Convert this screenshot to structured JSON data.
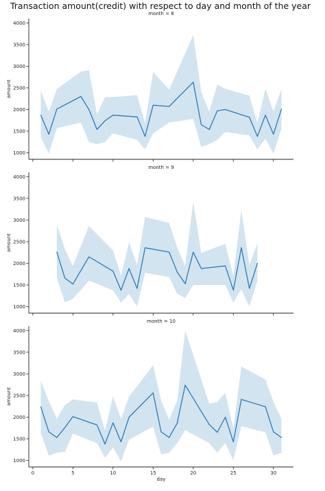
{
  "figure_title": "Transaction amount(credit) with respect to day and month of the year",
  "chart_data": [
    {
      "type": "line",
      "title": "month = 8",
      "xlabel": "",
      "ylabel": "amount",
      "xlim": [
        -0.5,
        32.5
      ],
      "ylim": [
        850,
        4100
      ],
      "xticks": [
        0,
        5,
        10,
        15,
        20,
        25,
        30
      ],
      "xtick_labels_visible": false,
      "yticks": [
        1000,
        1500,
        2000,
        2500,
        3000,
        3500,
        4000
      ],
      "band": "confidence interval (shaded)",
      "x": [
        1,
        2,
        3,
        6,
        7,
        8,
        9,
        10,
        13,
        14,
        15,
        17,
        20,
        21,
        22,
        23,
        24,
        27,
        28,
        29,
        30,
        31
      ],
      "y": [
        1870,
        1430,
        2010,
        2300,
        2000,
        1540,
        1740,
        1870,
        1830,
        1380,
        2100,
        2070,
        2630,
        1650,
        1540,
        1970,
        2000,
        1820,
        1380,
        1870,
        1430,
        2010
      ],
      "y_lower": [
        1370,
        980,
        1570,
        1700,
        1250,
        1200,
        1250,
        1450,
        1300,
        1080,
        1450,
        1700,
        1780,
        1130,
        1200,
        1300,
        1480,
        1400,
        1080,
        1330,
        980,
        1560
      ],
      "y_upper": [
        2430,
        1950,
        2470,
        2880,
        2910,
        1890,
        2280,
        2290,
        2330,
        1690,
        2870,
        2460,
        3720,
        2400,
        1950,
        2570,
        2480,
        2320,
        1690,
        2480,
        1960,
        2470
      ]
    },
    {
      "type": "line",
      "title": "month = 9",
      "xlabel": "",
      "ylabel": "amount",
      "xlim": [
        -0.5,
        32.5
      ],
      "ylim": [
        850,
        4100
      ],
      "xticks": [
        0,
        5,
        10,
        15,
        20,
        25,
        30
      ],
      "xtick_labels_visible": false,
      "yticks": [
        1000,
        1500,
        2000,
        2500,
        3000,
        3500,
        4000
      ],
      "band": "confidence interval (shaded)",
      "x": [
        3,
        4,
        5,
        7,
        10,
        11,
        12,
        13,
        14,
        17,
        18,
        19,
        20,
        21,
        24,
        25,
        26,
        27,
        28
      ],
      "y": [
        2260,
        1660,
        1520,
        2150,
        1820,
        1380,
        1880,
        1420,
        2360,
        2260,
        1800,
        1530,
        2260,
        1880,
        1940,
        1380,
        2360,
        1420,
        2000
      ],
      "y_lower": [
        1660,
        1100,
        1180,
        1600,
        1380,
        1090,
        1290,
        1000,
        1780,
        1680,
        1300,
        1200,
        1500,
        1500,
        1500,
        1090,
        1400,
        1000,
        1600
      ],
      "y_upper": [
        2890,
        2330,
        1940,
        2860,
        2300,
        1710,
        2490,
        1960,
        3070,
        2930,
        2370,
        1940,
        3420,
        2240,
        2450,
        1710,
        3230,
        1960,
        2460
      ]
    },
    {
      "type": "line",
      "title": "month = 10",
      "xlabel": "day",
      "ylabel": "amount",
      "xlim": [
        -0.5,
        32.5
      ],
      "ylim": [
        850,
        4100
      ],
      "xticks": [
        0,
        5,
        10,
        15,
        20,
        25,
        30
      ],
      "xtick_labels_visible": true,
      "yticks": [
        1000,
        1500,
        2000,
        2500,
        3000,
        3500,
        4000
      ],
      "band": "confidence interval (shaded)",
      "x": [
        1,
        2,
        3,
        4,
        5,
        8,
        9,
        10,
        11,
        12,
        15,
        16,
        17,
        18,
        19,
        22,
        23,
        24,
        25,
        26,
        29,
        30,
        31
      ],
      "y": [
        2240,
        1660,
        1530,
        1760,
        2010,
        1820,
        1380,
        1870,
        1430,
        2000,
        2560,
        1660,
        1530,
        1860,
        2740,
        1830,
        1650,
        2000,
        1430,
        2410,
        2240,
        1660,
        1530
      ],
      "y_lower": [
        1640,
        1110,
        1180,
        1200,
        1620,
        1400,
        1060,
        1300,
        980,
        1480,
        1780,
        1140,
        1180,
        1400,
        1700,
        1400,
        1180,
        1400,
        1000,
        1790,
        1650,
        1120,
        1180
      ],
      "y_upper": [
        2840,
        2370,
        1960,
        2280,
        2410,
        2340,
        1690,
        2480,
        1960,
        2470,
        3200,
        2390,
        1940,
        2380,
        4000,
        2310,
        2350,
        2560,
        1740,
        3170,
        2870,
        2350,
        1960
      ]
    }
  ]
}
